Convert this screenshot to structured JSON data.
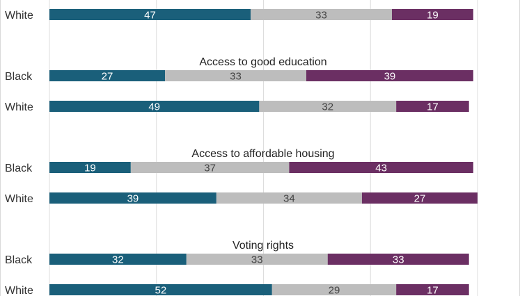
{
  "chart_data": {
    "type": "bar",
    "orientation": "horizontal",
    "stacked": true,
    "xlim": [
      0,
      100
    ],
    "grid": true,
    "colors": [
      "#1a5f7a",
      "#bdbdbd",
      "#6b2f63"
    ],
    "label_colors": [
      "#ffffff",
      "#444444",
      "#ffffff"
    ],
    "groups": [
      {
        "title": "",
        "rows": [
          {
            "label": "White",
            "values": [
              47,
              33,
              19
            ]
          }
        ]
      },
      {
        "title": "Access to good education",
        "rows": [
          {
            "label": "Black",
            "values": [
              27,
              33,
              39
            ]
          },
          {
            "label": "White",
            "values": [
              49,
              32,
              17
            ]
          }
        ]
      },
      {
        "title": "Access to affordable housing",
        "rows": [
          {
            "label": "Black",
            "values": [
              19,
              37,
              43
            ]
          },
          {
            "label": "White",
            "values": [
              39,
              34,
              27
            ]
          }
        ]
      },
      {
        "title": "Voting rights",
        "rows": [
          {
            "label": "Black",
            "values": [
              32,
              33,
              33
            ]
          },
          {
            "label": "White",
            "values": [
              52,
              29,
              17
            ]
          }
        ]
      }
    ]
  }
}
